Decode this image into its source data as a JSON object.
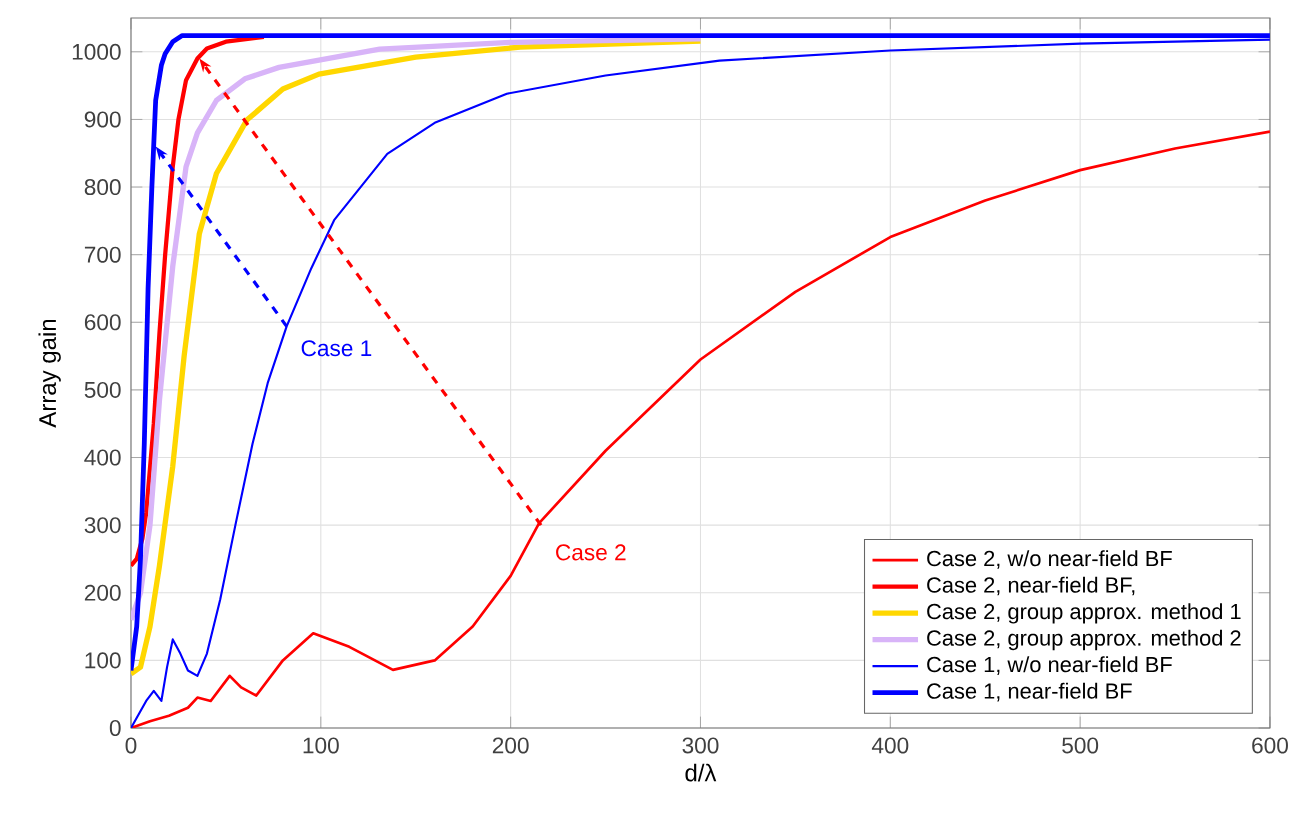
{
  "chart_data": {
    "type": "line",
    "xlabel": "d/λ",
    "ylabel": "Array gain",
    "xlim": [
      0,
      600
    ],
    "ylim": [
      0,
      1050
    ],
    "xticks": [
      0,
      100,
      200,
      300,
      400,
      500,
      600
    ],
    "yticks": [
      0,
      100,
      200,
      300,
      400,
      500,
      600,
      700,
      800,
      900,
      1000
    ],
    "grid": true,
    "legend": "bottom right",
    "marker": "none",
    "line_style": "solid",
    "series": [
      {
        "name": "Case 2, w/o near-field BF",
        "color": "#ff0000",
        "x": [
          0,
          10,
          20,
          30,
          35,
          42,
          52,
          58,
          66,
          80,
          96,
          115,
          138,
          160,
          180,
          200,
          215,
          250,
          300,
          350,
          400,
          450,
          500,
          550,
          600
        ],
        "values": [
          0,
          10,
          18,
          30,
          45,
          40,
          77,
          60,
          48,
          100,
          140,
          120,
          86,
          100,
          150,
          225,
          303,
          410,
          545,
          645,
          726,
          780,
          825,
          857,
          882
        ]
      },
      {
        "name": "Case 2, near-field BF,",
        "color": "#ff0000",
        "x": [
          0,
          3,
          6,
          8,
          12,
          15,
          18,
          22,
          25,
          29,
          35,
          40,
          50,
          70
        ],
        "values": [
          240,
          250,
          280,
          318,
          450,
          584,
          700,
          830,
          900,
          958,
          990,
          1005,
          1015,
          1022
        ]
      },
      {
        "name": "Case 2, group approx. method 1",
        "color": "#ffd700",
        "x": [
          0,
          5,
          10,
          15,
          22,
          28,
          36,
          45,
          61,
          80,
          99,
          150,
          205,
          300
        ],
        "values": [
          80,
          90,
          150,
          240,
          387,
          550,
          731,
          820,
          899,
          945,
          967,
          992,
          1007,
          1016
        ]
      },
      {
        "name": "Case 2, group approx. method 2",
        "color": "#d8b4f8",
        "x": [
          0,
          5,
          10,
          15,
          22,
          29,
          35,
          45,
          60,
          78,
          131,
          200,
          300
        ],
        "values": [
          160,
          200,
          300,
          485,
          683,
          830,
          880,
          928,
          960,
          977,
          1004,
          1014,
          1019
        ]
      },
      {
        "name": "Case 1, w/o near-field BF",
        "color": "#0000ff",
        "x": [
          0,
          4,
          8,
          12,
          16,
          19,
          22,
          26,
          30,
          35,
          40,
          47,
          55,
          64,
          72,
          82,
          95,
          107,
          135,
          160,
          198,
          250,
          310,
          400,
          500,
          600
        ],
        "values": [
          0,
          20,
          40,
          55,
          40,
          90,
          131,
          110,
          85,
          77,
          110,
          190,
          300,
          420,
          510,
          594,
          680,
          751,
          849,
          895,
          938,
          965,
          987,
          1002,
          1012,
          1018
        ]
      },
      {
        "name": "Case 1, near-field BF",
        "color": "#0000ff",
        "x": [
          0,
          3,
          5,
          7,
          9,
          11,
          13,
          16,
          18,
          22,
          27,
          600
        ],
        "values": [
          85,
          150,
          250,
          420,
          650,
          800,
          928,
          980,
          997,
          1015,
          1024,
          1024
        ]
      }
    ],
    "annotations": [
      {
        "text": "Case 1",
        "x": 82,
        "y": 594
      },
      {
        "text": "Case 2",
        "x": 216,
        "y": 300
      }
    ]
  }
}
